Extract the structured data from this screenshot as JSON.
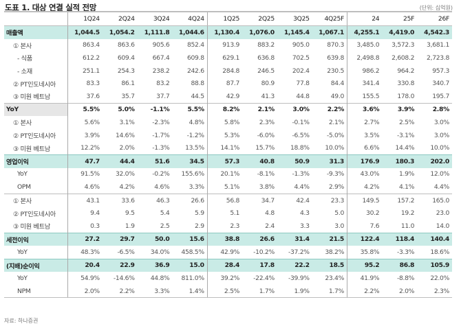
{
  "title": "도표 1. 대상 연결 실적 전망",
  "unit": "(단위: 십억원)",
  "source": "자료: 하나증권",
  "columns": [
    "1Q24",
    "2Q24",
    "3Q24",
    "4Q24",
    "1Q25",
    "2Q25",
    "3Q25",
    "4Q25F",
    "24",
    "25F",
    "26F"
  ],
  "rows": [
    {
      "label": "매출액",
      "values": [
        "1,044.5",
        "1,054.2",
        "1,111.8",
        "1,044.6",
        "1,130.4",
        "1,076.0",
        "1,145.4",
        "1,067.1",
        "4,255.1",
        "4,419.0",
        "4,542.3"
      ]
    },
    {
      "label": "① 본사",
      "values": [
        "863.4",
        "863.6",
        "905.6",
        "852.4",
        "913.9",
        "883.2",
        "905.0",
        "870.3",
        "3,485.0",
        "3,572.3",
        "3,681.1"
      ]
    },
    {
      "label": "- 식품",
      "values": [
        "612.2",
        "609.4",
        "667.4",
        "609.8",
        "629.1",
        "636.8",
        "702.5",
        "639.8",
        "2,498.8",
        "2,608.2",
        "2,723.8"
      ]
    },
    {
      "label": "- 소재",
      "values": [
        "251.1",
        "254.3",
        "238.2",
        "242.6",
        "284.8",
        "246.5",
        "202.4",
        "230.5",
        "986.2",
        "964.2",
        "957.3"
      ]
    },
    {
      "label": "② PT인도네시아",
      "values": [
        "83.3",
        "86.1",
        "83.2",
        "88.8",
        "87.7",
        "80.9",
        "77.8",
        "84.4",
        "341.4",
        "330.8",
        "340.7"
      ]
    },
    {
      "label": "③ 미원 베트남",
      "values": [
        "37.6",
        "35.7",
        "37.7",
        "44.5",
        "42.9",
        "41.3",
        "44.8",
        "49.0",
        "155.5",
        "178.0",
        "195.7"
      ]
    },
    {
      "label": "YoY",
      "values": [
        "5.5%",
        "5.0%",
        "-1.1%",
        "5.5%",
        "8.2%",
        "2.1%",
        "3.0%",
        "2.2%",
        "3.6%",
        "3.9%",
        "2.8%"
      ]
    },
    {
      "label": "① 본사",
      "values": [
        "5.6%",
        "3.1%",
        "-2.3%",
        "4.8%",
        "5.8%",
        "2.3%",
        "-0.1%",
        "2.1%",
        "2.7%",
        "2.5%",
        "3.0%"
      ]
    },
    {
      "label": "② PT인도네시아",
      "values": [
        "3.9%",
        "14.6%",
        "-1.7%",
        "-1.2%",
        "5.3%",
        "-6.0%",
        "-6.5%",
        "-5.0%",
        "3.5%",
        "-3.1%",
        "3.0%"
      ]
    },
    {
      "label": "③ 미원 베트남",
      "values": [
        "12.2%",
        "2.0%",
        "-1.3%",
        "13.5%",
        "14.1%",
        "15.7%",
        "18.8%",
        "10.0%",
        "6.6%",
        "14.4%",
        "10.0%"
      ]
    },
    {
      "label": "영업이익",
      "values": [
        "47.7",
        "44.4",
        "51.6",
        "34.5",
        "57.3",
        "40.8",
        "50.9",
        "31.3",
        "176.9",
        "180.3",
        "202.0"
      ]
    },
    {
      "label": "YoY",
      "values": [
        "91.5%",
        "32.0%",
        "-0.2%",
        "155.6%",
        "20.1%",
        "-8.1%",
        "-1.3%",
        "-9.3%",
        "43.0%",
        "1.9%",
        "12.0%"
      ]
    },
    {
      "label": "OPM",
      "values": [
        "4.6%",
        "4.2%",
        "4.6%",
        "3.3%",
        "5.1%",
        "3.8%",
        "4.4%",
        "2.9%",
        "4.2%",
        "4.1%",
        "4.4%"
      ]
    },
    {
      "label": "① 본사",
      "values": [
        "43.1",
        "33.6",
        "46.3",
        "26.6",
        "56.8",
        "34.7",
        "42.4",
        "23.3",
        "149.5",
        "157.2",
        "165.0"
      ]
    },
    {
      "label": "② PT인도네시아",
      "values": [
        "9.4",
        "9.5",
        "5.4",
        "5.9",
        "5.1",
        "4.8",
        "4.3",
        "5.0",
        "30.2",
        "19.2",
        "23.0"
      ]
    },
    {
      "label": "③ 미원 베트남",
      "values": [
        "0.3",
        "1.9",
        "2.5",
        "2.9",
        "2.3",
        "2.4",
        "3.3",
        "3.0",
        "7.6",
        "11.0",
        "14.0"
      ]
    },
    {
      "label": "세전이익",
      "values": [
        "27.2",
        "29.7",
        "50.0",
        "15.6",
        "38.8",
        "26.6",
        "31.4",
        "21.5",
        "122.4",
        "118.4",
        "140.4"
      ]
    },
    {
      "label": "YoY",
      "values": [
        "48.3%",
        "-6.5%",
        "34.0%",
        "458.5%",
        "42.9%",
        "-10.2%",
        "-37.2%",
        "38.2%",
        "35.8%",
        "-3.3%",
        "18.6%"
      ]
    },
    {
      "label": "(지배)순이익",
      "values": [
        "20.4",
        "22.9",
        "36.9",
        "15.0",
        "28.4",
        "17.8",
        "22.2",
        "18.5",
        "95.2",
        "86.8",
        "105.9"
      ]
    },
    {
      "label": "YoY",
      "values": [
        "54.9%",
        "-14.6%",
        "44.8%",
        "811.0%",
        "39.2%",
        "-22.4%",
        "-39.9%",
        "23.4%",
        "41.9%",
        "-8.8%",
        "22.0%"
      ]
    },
    {
      "label": "NPM",
      "values": [
        "2.0%",
        "2.2%",
        "3.3%",
        "1.4%",
        "2.5%",
        "1.7%",
        "1.9%",
        "1.7%",
        "2.2%",
        "2.0%",
        "2.3%"
      ]
    }
  ],
  "colors": {
    "highlight_row": "#c9ebe6",
    "yoy_label_bg": "#e6e6e6",
    "grid": "#a9a9a9"
  }
}
